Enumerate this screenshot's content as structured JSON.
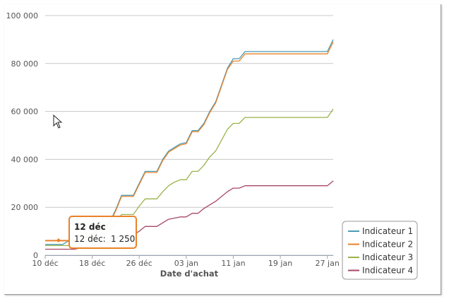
{
  "colors": {
    "series": [
      "#4b9bb5",
      "#e9822a",
      "#99b34a",
      "#a84767"
    ],
    "grid": "#c8c8c8",
    "axis": "#9aa4b3",
    "tooltip_border": "#e9822a"
  },
  "chart_data": {
    "type": "line",
    "xlabel": "Date d'achat",
    "ylabel": "",
    "ylim": [
      0,
      100000
    ],
    "xlim": [
      "2011-12-10",
      "2012-01-28"
    ],
    "y_ticks": [
      0,
      20000,
      40000,
      60000,
      80000,
      100000
    ],
    "y_tick_labels": [
      "0",
      "20 000",
      "40 000",
      "60 000",
      "80 000",
      "100 000"
    ],
    "x_ticks": [
      "2011-12-10",
      "2011-12-18",
      "2011-12-26",
      "2012-01-03",
      "2012-01-11",
      "2012-01-19",
      "2012-01-27"
    ],
    "x_tick_labels": [
      "10 déc",
      "18 déc",
      "26 déc",
      "03 jan",
      "11 jan",
      "19 jan",
      "27 jan"
    ],
    "grid": true,
    "legend_position": "bottom-right",
    "series": [
      {
        "name": "Indicateur 1",
        "x": [
          "2011-12-10",
          "2011-12-13",
          "2011-12-14",
          "2011-12-15",
          "2011-12-16",
          "2011-12-17",
          "2011-12-18",
          "2011-12-19",
          "2011-12-20",
          "2011-12-21",
          "2011-12-22",
          "2011-12-23",
          "2011-12-24",
          "2011-12-25",
          "2011-12-26",
          "2011-12-27",
          "2011-12-28",
          "2011-12-29",
          "2011-12-30",
          "2011-12-31",
          "2012-01-01",
          "2012-01-02",
          "2012-01-03",
          "2012-01-04",
          "2012-01-05",
          "2012-01-06",
          "2012-01-07",
          "2012-01-08",
          "2012-01-09",
          "2012-01-10",
          "2012-01-11",
          "2012-01-12",
          "2012-01-13",
          "2012-01-14",
          "2012-01-27",
          "2012-01-28"
        ],
        "values": [
          4500,
          4500,
          6000,
          6000,
          7000,
          8000,
          9000,
          10500,
          11500,
          14000,
          19000,
          25000,
          25000,
          25000,
          30000,
          35000,
          35000,
          35000,
          40000,
          43500,
          45000,
          46500,
          47000,
          52000,
          52000,
          55000,
          60000,
          64000,
          71000,
          78000,
          82000,
          82000,
          85000,
          85000,
          85000,
          90000
        ]
      },
      {
        "name": "Indicateur 2",
        "x": [
          "2011-12-10",
          "2011-12-13",
          "2011-12-14",
          "2011-12-15",
          "2011-12-16",
          "2011-12-17",
          "2011-12-18",
          "2011-12-19",
          "2011-12-20",
          "2011-12-21",
          "2011-12-22",
          "2011-12-23",
          "2011-12-24",
          "2011-12-25",
          "2011-12-26",
          "2011-12-27",
          "2011-12-28",
          "2011-12-29",
          "2011-12-30",
          "2011-12-31",
          "2012-01-01",
          "2012-01-02",
          "2012-01-03",
          "2012-01-04",
          "2012-01-05",
          "2012-01-06",
          "2012-01-07",
          "2012-01-08",
          "2012-01-09",
          "2012-01-10",
          "2012-01-11",
          "2012-01-12",
          "2012-01-13",
          "2012-01-14",
          "2012-01-27",
          "2012-01-28"
        ],
        "values": [
          6000,
          6000,
          6000,
          6000,
          7000,
          7500,
          8500,
          10000,
          11500,
          13500,
          18500,
          24500,
          24500,
          24500,
          29500,
          34500,
          34500,
          34500,
          39500,
          43000,
          44500,
          46000,
          46500,
          51500,
          51500,
          54500,
          59500,
          63500,
          70500,
          77500,
          81000,
          81000,
          84000,
          84000,
          84000,
          89000
        ]
      },
      {
        "name": "Indicateur 3",
        "x": [
          "2011-12-10",
          "2011-12-13",
          "2011-12-14",
          "2011-12-15",
          "2011-12-16",
          "2011-12-17",
          "2011-12-18",
          "2011-12-19",
          "2011-12-20",
          "2011-12-21",
          "2011-12-22",
          "2011-12-23",
          "2011-12-24",
          "2011-12-25",
          "2011-12-26",
          "2011-12-27",
          "2011-12-28",
          "2011-12-29",
          "2011-12-30",
          "2011-12-31",
          "2012-01-01",
          "2012-01-02",
          "2012-01-03",
          "2012-01-04",
          "2012-01-05",
          "2012-01-06",
          "2012-01-07",
          "2012-01-08",
          "2012-01-09",
          "2012-01-10",
          "2012-01-11",
          "2012-01-12",
          "2012-01-13",
          "2012-01-14",
          "2012-01-27",
          "2012-01-28"
        ],
        "values": [
          4000,
          4000,
          4000,
          4000,
          5000,
          6000,
          7000,
          8000,
          9000,
          10500,
          13500,
          17000,
          17000,
          17000,
          20500,
          23500,
          23500,
          23500,
          26500,
          29000,
          30500,
          31500,
          31500,
          35000,
          35000,
          37500,
          41000,
          43500,
          48000,
          52500,
          55000,
          55000,
          57500,
          57500,
          57500,
          61000
        ]
      },
      {
        "name": "Indicateur 4",
        "x": [
          "2011-12-10",
          "2011-12-13",
          "2011-12-14",
          "2011-12-15",
          "2011-12-16",
          "2011-12-17",
          "2011-12-18",
          "2011-12-19",
          "2011-12-20",
          "2011-12-21",
          "2011-12-22",
          "2011-12-23",
          "2011-12-24",
          "2011-12-25",
          "2011-12-26",
          "2011-12-27",
          "2011-12-28",
          "2011-12-29",
          "2011-12-30",
          "2011-12-31",
          "2012-01-01",
          "2012-01-02",
          "2012-01-03",
          "2012-01-04",
          "2012-01-05",
          "2012-01-06",
          "2012-01-07",
          "2012-01-08",
          "2012-01-09",
          "2012-01-10",
          "2012-01-11",
          "2012-01-12",
          "2012-01-13",
          "2012-01-14",
          "2012-01-27",
          "2012-01-28"
        ],
        "values": [
          2500,
          2500,
          2500,
          2500,
          3000,
          3500,
          4000,
          4500,
          5000,
          6000,
          7000,
          8500,
          8500,
          8500,
          10000,
          12000,
          12000,
          12000,
          13500,
          15000,
          15500,
          16000,
          16000,
          17500,
          17500,
          19500,
          21000,
          22500,
          24500,
          26500,
          28000,
          28000,
          29000,
          29000,
          29000,
          31000
        ]
      }
    ],
    "tooltip": {
      "title": "12 déc",
      "label": "12 déc:",
      "value": "1 250"
    }
  }
}
